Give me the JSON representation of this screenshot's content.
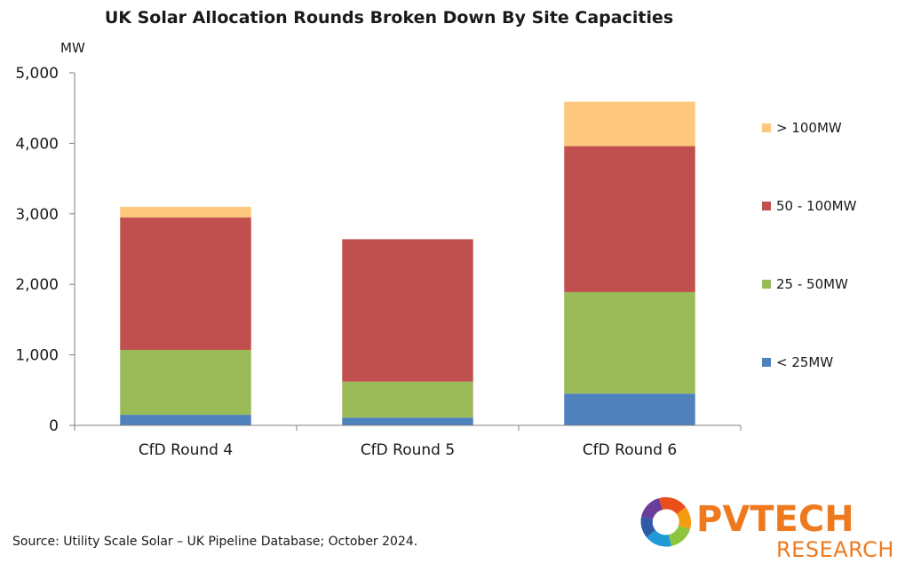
{
  "chart_data": {
    "type": "bar",
    "stacked": true,
    "title": "UK Solar Allocation Rounds Broken Down By Site Capacities",
    "ylabel": "MW",
    "xlabel": "",
    "categories": [
      "CfD Round 4",
      "CfD Round 5",
      "CfD Round 6"
    ],
    "ylim": [
      0,
      5000
    ],
    "yticks": [
      "0",
      "1,000",
      "2,000",
      "3,000",
      "4,000",
      "5,000"
    ],
    "ytick_values": [
      0,
      1000,
      2000,
      3000,
      4000,
      5000
    ],
    "grid": false,
    "legend_position": "right",
    "series": [
      {
        "name": "< 25MW",
        "color": "#4f81bd",
        "values": [
          150,
          110,
          450
        ]
      },
      {
        "name": "25 - 50MW",
        "color": "#9bbb59",
        "values": [
          920,
          510,
          1440
        ]
      },
      {
        "name": "50 - 100MW",
        "color": "#c0504d",
        "values": [
          1880,
          2020,
          2070
        ]
      },
      {
        "name": "> 100MW",
        "color": "#fdc77e",
        "values": [
          150,
          0,
          630
        ]
      }
    ]
  },
  "source": "Source: Utility Scale Solar – UK Pipeline Database; October 2024.",
  "logo": {
    "line1": "PVTECH",
    "line2": "RESEARCH",
    "color": "#ef7a1e"
  }
}
